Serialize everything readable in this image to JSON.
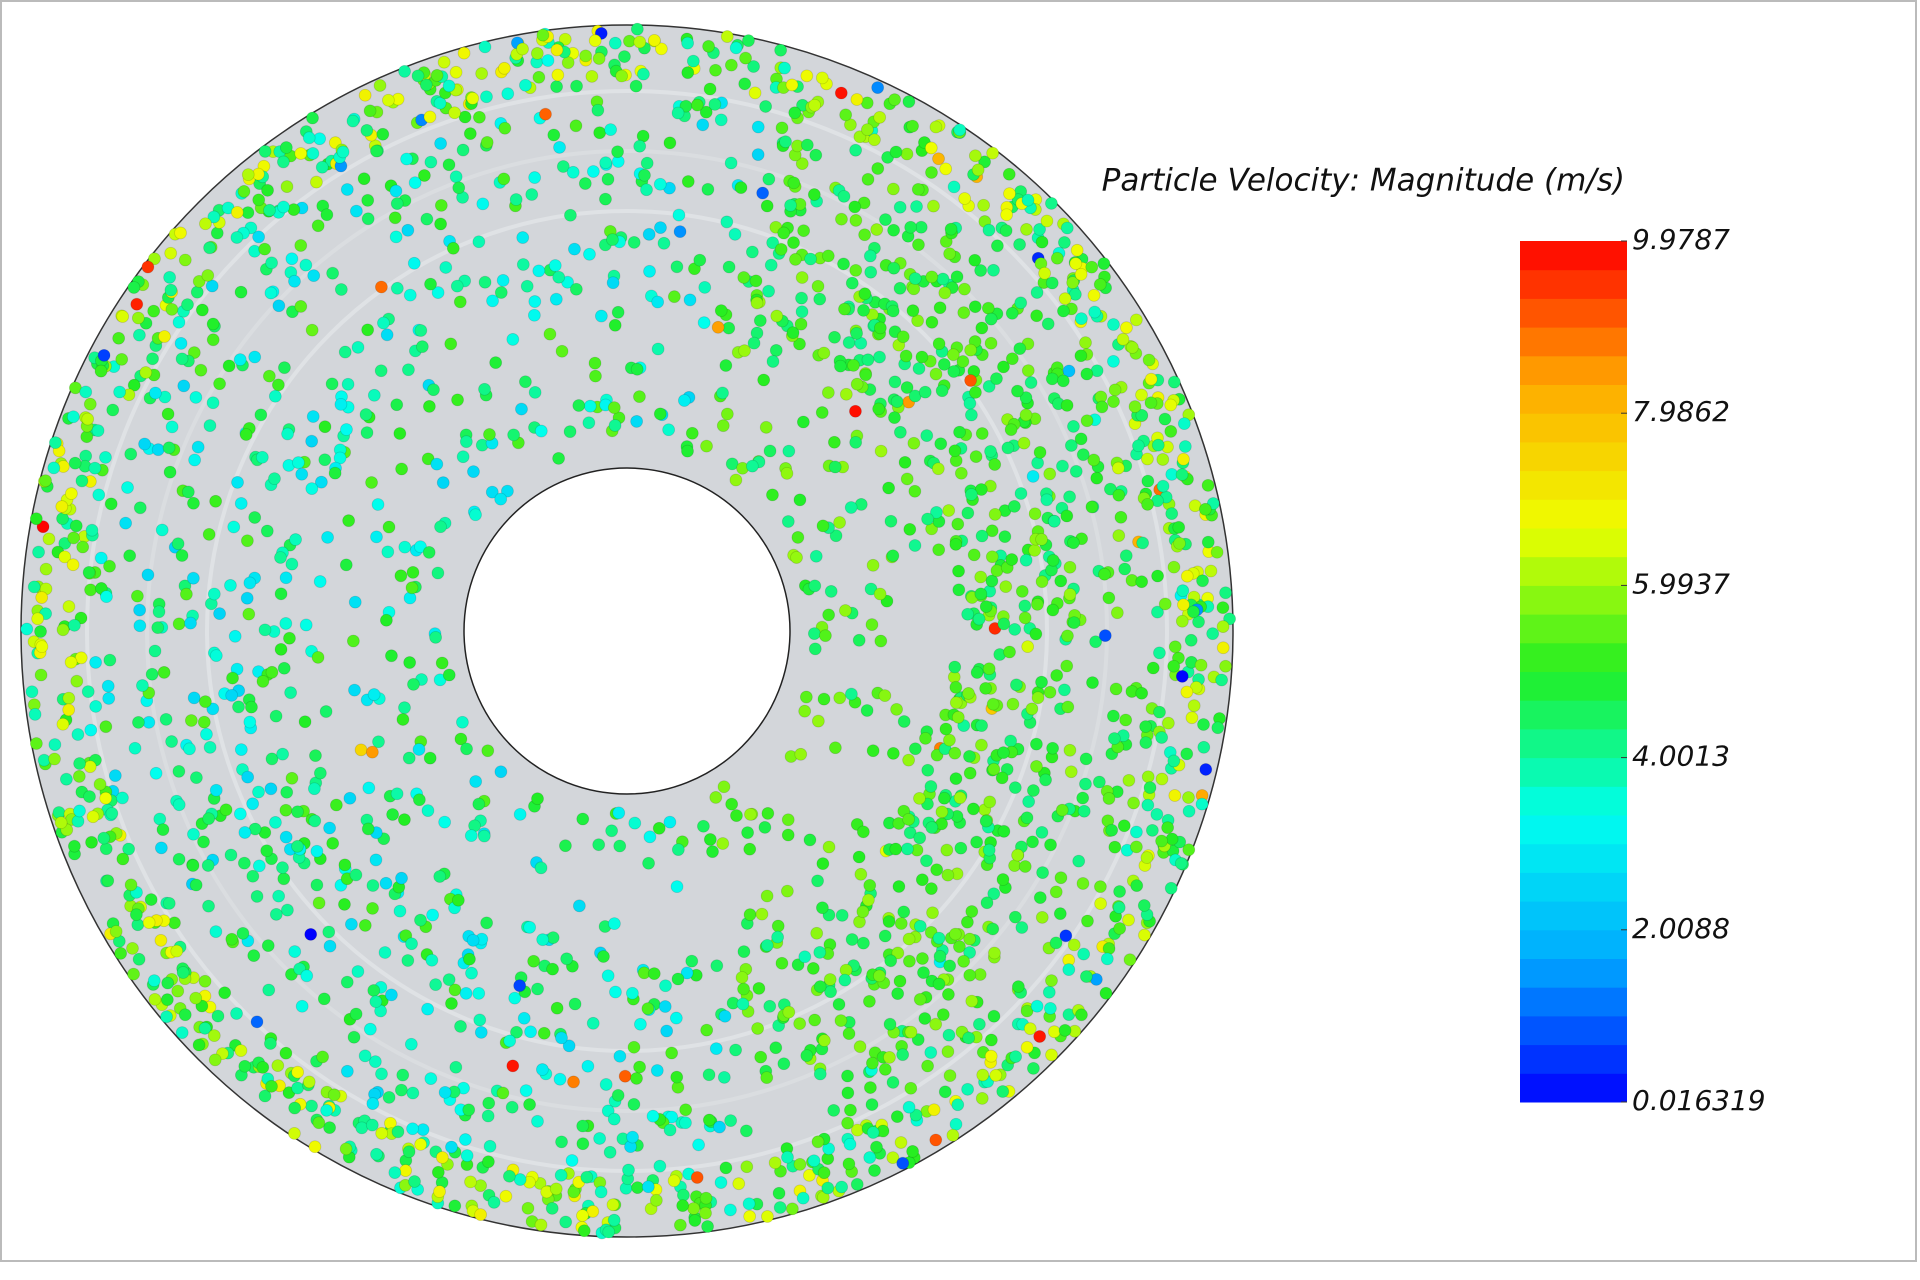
{
  "colorbar": {
    "title": "Particle Velocity: Magnitude (m/s)",
    "lim": [
      0.016319,
      9.9787
    ],
    "ticks": [
      9.9787,
      7.9862,
      5.9937,
      4.0013,
      2.0088,
      0.016319
    ],
    "levels": 30,
    "colormap": [
      "#0000ff",
      "#00aaff",
      "#00ffee",
      "#22ee22",
      "#eeff00",
      "#ffaa00",
      "#ff0000"
    ]
  }
}
